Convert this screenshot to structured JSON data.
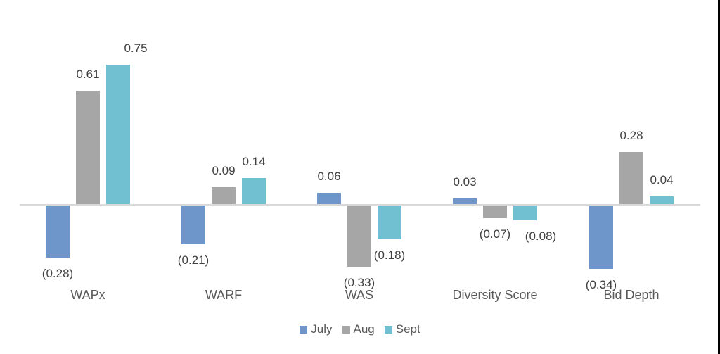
{
  "chart_data": {
    "type": "bar",
    "title": "",
    "xlabel": "",
    "ylabel": "",
    "grid": false,
    "legend_position": "bottom",
    "axis_color": "#d9d9d9",
    "data_label_color": "#404040",
    "category_label_color": "#595959",
    "baseline_value": 0,
    "ylim": [
      -0.4,
      0.85
    ],
    "categories": [
      "WAPx",
      "WARF",
      "WAS",
      "Diversity Score",
      "Bid Depth"
    ],
    "series": [
      {
        "name": "July",
        "color": "#6f96ca",
        "values": [
          -0.28,
          -0.21,
          0.06,
          0.03,
          -0.34
        ],
        "labels": [
          "(0.28)",
          "(0.21)",
          "0.06",
          "0.03",
          "(0.34)"
        ]
      },
      {
        "name": "Aug",
        "color": "#a6a6a6",
        "values": [
          0.61,
          0.09,
          -0.33,
          -0.07,
          0.28
        ],
        "labels": [
          "0.61",
          "0.09",
          "(0.33)",
          "(0.07)",
          "0.28"
        ]
      },
      {
        "name": "Sept",
        "color": "#71c0d2",
        "values": [
          0.75,
          0.14,
          -0.18,
          -0.08,
          0.04
        ],
        "labels": [
          "0.75",
          "0.14",
          "(0.18)",
          "(0.08)",
          "0.04"
        ]
      }
    ]
  }
}
